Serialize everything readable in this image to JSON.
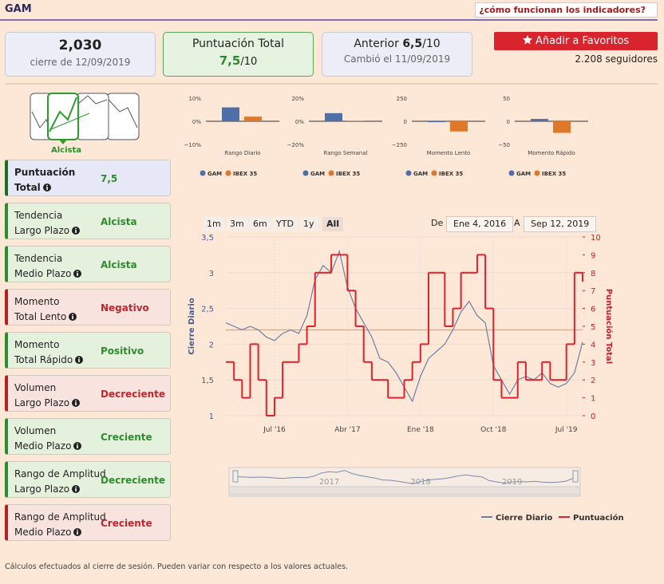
{
  "header": {
    "title": "GAM",
    "link": "¿cómo funcionan los indicadores?"
  },
  "price_card": {
    "value": "2,030",
    "caption": "cierre de 12/09/2019"
  },
  "total_card": {
    "label": "Puntuación Total",
    "score": "7,5",
    "denominator": "/10"
  },
  "previous_card": {
    "label": "Anterior",
    "score": "6,5",
    "denominator": "/10",
    "caption": "Cambió el 11/09/2019"
  },
  "favorites": {
    "button": "Añadir a Favoritos",
    "followers": "2.208 seguidores"
  },
  "trend_icon": {
    "label": "Alcista"
  },
  "indicators": [
    {
      "line1": "Puntuación",
      "line2": "Total",
      "value": "7,5",
      "color": "#2e8b2e",
      "background": "#e6e7f7",
      "accent": "#1f6e1f"
    },
    {
      "line1": "Tendencia",
      "line2": "Largo Plazo",
      "value": "Alcista",
      "color": "#2e8b2e",
      "background": "#e4f1dd",
      "accent": "#2e8b2e"
    },
    {
      "line1": "Tendencia",
      "line2": "Medio Plazo",
      "value": "Alcista",
      "color": "#2e8b2e",
      "background": "#e4f1dd",
      "accent": "#2e8b2e"
    },
    {
      "line1": "Momento",
      "line2": "Total Lento",
      "value": "Negativo",
      "color": "#c0262d",
      "background": "#f8e3df",
      "accent": "#b22222"
    },
    {
      "line1": "Momento",
      "line2": "Total Rápido",
      "value": "Positivo",
      "color": "#2e8b2e",
      "background": "#e4f1dd",
      "accent": "#2e8b2e"
    },
    {
      "line1": "Volumen",
      "line2": "Largo Plazo",
      "value": "Decreciente",
      "color": "#c0262d",
      "background": "#f8e3df",
      "accent": "#b22222"
    },
    {
      "line1": "Volumen",
      "line2": "Medio Plazo",
      "value": "Creciente",
      "color": "#2e8b2e",
      "background": "#e4f1dd",
      "accent": "#2e8b2e"
    },
    {
      "line1": "Rango de Amplitud",
      "line2": "Largo Plazo",
      "value": "Decreciente",
      "color": "#2e8b2e",
      "background": "#e4f1dd",
      "accent": "#2e8b2e"
    },
    {
      "line1": "Rango de Amplitud",
      "line2": "Medio Plazo",
      "value": "Creciente",
      "color": "#c0262d",
      "background": "#f8e3df",
      "accent": "#b22222"
    }
  ],
  "mini_charts": [
    {
      "type": "bar",
      "title": "Rango Diario",
      "ylim": [
        -10,
        10
      ],
      "yticks": [
        {
          "value": -10,
          "label": "−10%"
        },
        {
          "value": 0,
          "label": "0%"
        },
        {
          "value": 10,
          "label": "10%"
        }
      ],
      "series": [
        {
          "name": "GAM",
          "color": "#4f6fa8",
          "values": [
            6
          ]
        },
        {
          "name": "IBEX 35",
          "color": "#e0782a",
          "values": [
            2
          ]
        }
      ]
    },
    {
      "type": "bar",
      "title": "Rango Semanal",
      "ylim": [
        -20,
        20
      ],
      "yticks": [
        {
          "value": -20,
          "label": "−20%"
        },
        {
          "value": 0,
          "label": "0%"
        },
        {
          "value": 20,
          "label": "20%"
        }
      ],
      "series": [
        {
          "name": "GAM",
          "color": "#4f6fa8",
          "values": [
            7
          ]
        },
        {
          "name": "IBEX 35",
          "color": "#e0782a",
          "values": [
            0.5
          ]
        }
      ]
    },
    {
      "type": "bar",
      "title": "Momento Lento",
      "ylim": [
        -250,
        250
      ],
      "yticks": [
        {
          "value": -250,
          "label": "−250"
        },
        0,
        250
      ],
      "series": [
        {
          "name": "GAM",
          "color": "#4f6fa8",
          "values": [
            -10
          ]
        },
        {
          "name": "IBEX 35",
          "color": "#e0782a",
          "values": [
            -110
          ]
        }
      ]
    },
    {
      "type": "bar",
      "title": "Momento Rápido",
      "ylim": [
        -50,
        50
      ],
      "yticks": [
        {
          "value": -50,
          "label": "−50"
        },
        0,
        50
      ],
      "series": [
        {
          "name": "GAM",
          "color": "#4f6fa8",
          "values": [
            5
          ]
        },
        {
          "name": "IBEX 35",
          "color": "#e0782a",
          "values": [
            -25
          ]
        }
      ]
    }
  ],
  "main_chart": {
    "type": "line",
    "range_buttons": [
      "1m",
      "3m",
      "6m",
      "YTD",
      "1y",
      "All"
    ],
    "selected": "All",
    "from_label": "De",
    "from": "Ene 4, 2016",
    "to_label": "A",
    "to": "Sep 12, 2019",
    "ylabel": "Cierre Diario",
    "y2label": "Puntuación Total",
    "xlim": [
      "2016-01",
      "2019-09"
    ],
    "xticks": [
      {
        "value": "2016-07",
        "label": "Jul '16"
      },
      {
        "value": "2017-04",
        "label": "Abr '17"
      },
      {
        "value": "2018-01",
        "label": "Ene '18"
      },
      {
        "value": "2018-10",
        "label": "Oct '18"
      },
      {
        "value": "2019-07",
        "label": "Jul '19"
      }
    ],
    "ylim": [
      1,
      3.5
    ],
    "yticks": [
      1,
      {
        "value": 1.5,
        "label": "1,5"
      },
      2,
      {
        "value": 2.5,
        "label": "2,5"
      },
      3,
      {
        "value": 3.5,
        "label": "3,5"
      }
    ],
    "y2lim": [
      0,
      10
    ],
    "y2ticks": [
      0,
      1,
      2,
      3,
      4,
      5,
      6,
      7,
      8,
      9,
      10
    ],
    "reference_line": 2.2,
    "reference_color": "#f0a070",
    "x": [
      "2016-01",
      "2016-02",
      "2016-03",
      "2016-04",
      "2016-05",
      "2016-06",
      "2016-07",
      "2016-08",
      "2016-09",
      "2016-10",
      "2016-11",
      "2016-12",
      "2017-01",
      "2017-02",
      "2017-03",
      "2017-04",
      "2017-05",
      "2017-06",
      "2017-07",
      "2017-08",
      "2017-09",
      "2017-10",
      "2017-11",
      "2017-12",
      "2018-01",
      "2018-02",
      "2018-03",
      "2018-04",
      "2018-05",
      "2018-06",
      "2018-07",
      "2018-08",
      "2018-09",
      "2018-10",
      "2018-11",
      "2018-12",
      "2019-01",
      "2019-02",
      "2019-03",
      "2019-04",
      "2019-05",
      "2019-06",
      "2019-07",
      "2019-08",
      "2019-09"
    ],
    "series": [
      {
        "name": "Cierre Diario",
        "color": "#6a7fa8",
        "values": [
          2.3,
          2.25,
          2.2,
          2.25,
          2.2,
          2.1,
          2.05,
          2.15,
          2.2,
          2.15,
          2.4,
          2.9,
          3.1,
          3.0,
          3.3,
          2.8,
          2.5,
          2.3,
          2.1,
          1.8,
          1.75,
          1.6,
          1.4,
          1.2,
          1.55,
          1.8,
          1.9,
          2.0,
          2.2,
          2.45,
          2.6,
          2.4,
          2.3,
          1.7,
          1.5,
          1.3,
          1.5,
          1.55,
          1.5,
          1.6,
          1.45,
          1.4,
          1.45,
          1.6,
          2.03
        ]
      },
      {
        "name": "Puntuación",
        "color": "#e0202a",
        "axis": "y2",
        "values": [
          3,
          2,
          1,
          4,
          2,
          0,
          1,
          3,
          3,
          4,
          5,
          8,
          8,
          9,
          9,
          7,
          5,
          3,
          2,
          2,
          1,
          1,
          2,
          3,
          4,
          8,
          8,
          5,
          6,
          8,
          8,
          9,
          6,
          2,
          1,
          1,
          3,
          2,
          2,
          3,
          2,
          2,
          4,
          8,
          7.5
        ]
      }
    ],
    "navigator_ticks": [
      {
        "value": "2017-01",
        "label": "2017"
      },
      {
        "value": "2018-01",
        "label": "2018"
      },
      {
        "value": "2019-01",
        "label": "2019"
      }
    ]
  },
  "footer": "Cálculos efectuados al cierre de sesión. Pueden variar con respecto a los valores actuales."
}
